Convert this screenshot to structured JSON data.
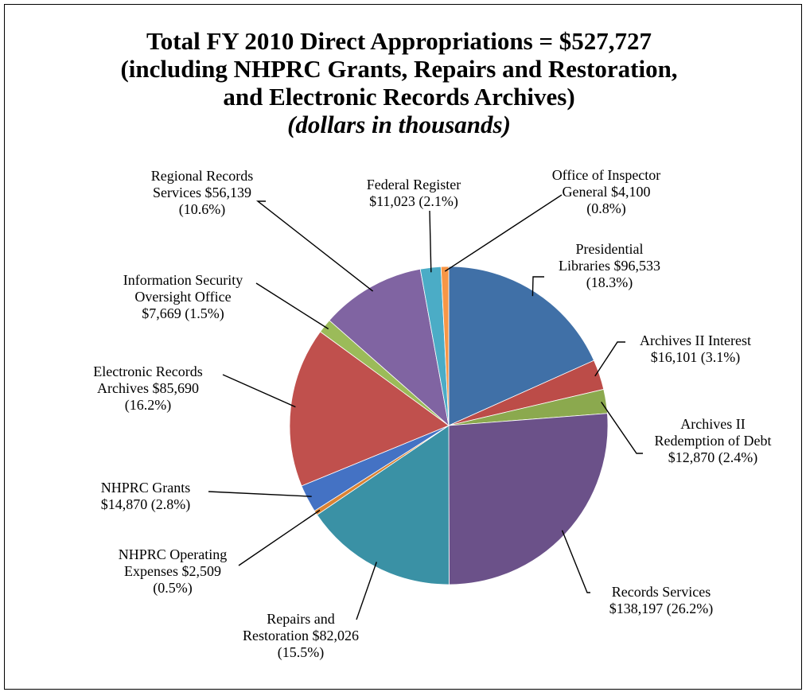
{
  "chart_data": {
    "type": "pie",
    "title_lines": [
      "Total FY 2010 Direct Appropriations = $527,727",
      "(including NHPRC Grants, Repairs and Restoration,",
      "and Electronic Records Archives)"
    ],
    "subtitle": "(dollars in thousands)",
    "slices": [
      {
        "name": "Presidential Libraries",
        "value": 96533,
        "percent": 18.3,
        "color": "#4070A7",
        "label_lines": [
          "Presidential",
          "Libraries $96,533",
          "(18.3%)"
        ]
      },
      {
        "name": "Archives II Interest",
        "value": 16101,
        "percent": 3.1,
        "color": "#BC4C48",
        "label_lines": [
          "Archives II Interest",
          "$16,101  (3.1%)"
        ]
      },
      {
        "name": "Archives II Redemption of Debt",
        "value": 12870,
        "percent": 2.4,
        "color": "#8BA94E",
        "label_lines": [
          "Archives II",
          "Redemption of Debt",
          "$12,870  (2.4%)"
        ]
      },
      {
        "name": "Records Services",
        "value": 138197,
        "percent": 26.2,
        "color": "#6B5189",
        "label_lines": [
          "Records Services",
          "$138,197  (26.2%)"
        ]
      },
      {
        "name": "Repairs and Restoration",
        "value": 82026,
        "percent": 15.5,
        "color": "#3A91A5",
        "label_lines": [
          "Repairs and",
          "Restoration $82,026",
          "(15.5%)"
        ]
      },
      {
        "name": "NHPRC Operating Expenses",
        "value": 2509,
        "percent": 0.5,
        "color": "#DB8334",
        "label_lines": [
          "NHPRC Operating",
          "Expenses $2,509",
          "(0.5%)"
        ]
      },
      {
        "name": "NHPRC Grants",
        "value": 14870,
        "percent": 2.8,
        "color": "#4472C4",
        "label_lines": [
          "NHPRC Grants",
          "$14,870  (2.8%)"
        ]
      },
      {
        "name": "Electronic Records Archives",
        "value": 85690,
        "percent": 16.2,
        "color": "#C0504D",
        "label_lines": [
          "Electronic Records",
          "Archives $85,690",
          "(16.2%)"
        ]
      },
      {
        "name": "Information Security Oversight Office",
        "value": 7669,
        "percent": 1.5,
        "color": "#9BBB59",
        "label_lines": [
          "Information Security",
          "Oversight Office",
          "$7,669  (1.5%)"
        ]
      },
      {
        "name": "Regional Records Services",
        "value": 56139,
        "percent": 10.6,
        "color": "#8064A2",
        "label_lines": [
          "Regional Records",
          "Services $56,139",
          "(10.6%)"
        ]
      },
      {
        "name": "Federal Register",
        "value": 11023,
        "percent": 2.1,
        "color": "#4BACC6",
        "label_lines": [
          "Federal Register",
          "$11,023  (2.1%)"
        ]
      },
      {
        "name": "Office of Inspector General",
        "value": 4100,
        "percent": 0.8,
        "color": "#F79646",
        "label_lines": [
          "Office of Inspector",
          "General $4,100",
          "(0.8%)"
        ]
      }
    ]
  }
}
